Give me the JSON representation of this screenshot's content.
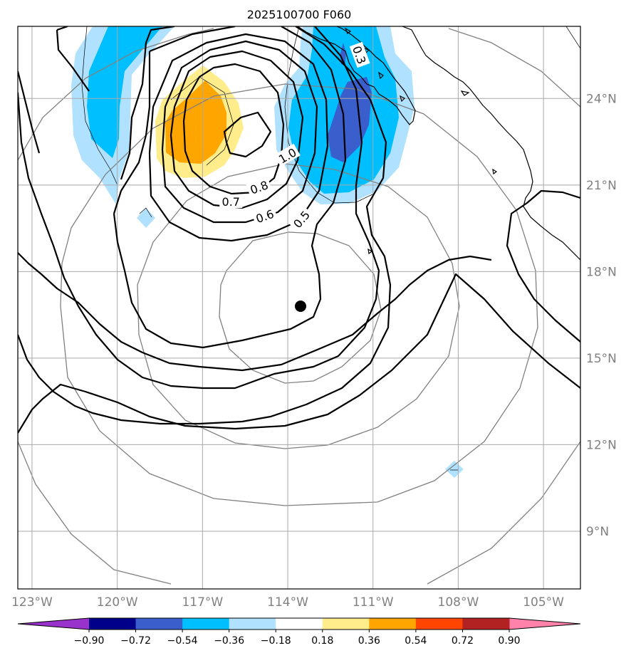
{
  "chart_data": {
    "type": "contour",
    "title": "2025100700 F060",
    "xlabel": "",
    "ylabel": "",
    "lon_range": [
      -123.5,
      -103.7
    ],
    "lat_range": [
      7.0,
      26.5
    ],
    "lon_ticks": [
      {
        "value": -123,
        "label": "123°W"
      },
      {
        "value": -120,
        "label": "120°W"
      },
      {
        "value": -117,
        "label": "117°W"
      },
      {
        "value": -114,
        "label": "114°W"
      },
      {
        "value": -111,
        "label": "111°W"
      },
      {
        "value": -108,
        "label": "108°W"
      },
      {
        "value": -105,
        "label": "105°W"
      }
    ],
    "lat_ticks": [
      {
        "value": 24,
        "label": "24°N"
      },
      {
        "value": 21,
        "label": "21°N"
      },
      {
        "value": 18,
        "label": "18°N"
      },
      {
        "value": 15,
        "label": "15°N"
      },
      {
        "value": 12,
        "label": "12°N"
      },
      {
        "value": 9,
        "label": "9°N"
      }
    ],
    "grid": true,
    "center_marker": {
      "lon": -113.55,
      "lat": 16.8
    },
    "contour_labels": [
      {
        "text": "1.0",
        "lon": -114.0,
        "lat": 22.0,
        "angle": -30
      },
      {
        "text": "0.8",
        "lon": -115.0,
        "lat": 20.9,
        "angle": -20
      },
      {
        "text": "0.7",
        "lon": -116.0,
        "lat": 20.4,
        "angle": 0
      },
      {
        "text": "0.6",
        "lon": -114.8,
        "lat": 19.9,
        "angle": -20
      },
      {
        "text": "0.5",
        "lon": -113.5,
        "lat": 19.8,
        "angle": -50
      },
      {
        "text": "0.3",
        "lon": -111.5,
        "lat": 25.5,
        "angle": 70
      }
    ],
    "colorbar": {
      "levels": [
        -0.9,
        -0.72,
        -0.54,
        -0.36,
        -0.18,
        0.18,
        0.36,
        0.54,
        0.72,
        0.9
      ],
      "tick_labels": [
        "−0.90",
        "−0.72",
        "−0.54",
        "−0.36",
        "−0.18",
        "0.18",
        "0.36",
        "0.54",
        "0.72",
        "0.90"
      ],
      "colors": [
        "#9932cc",
        "#00008b",
        "#3a5fcd",
        "#00bfff",
        "#b0e2ff",
        "#ffffff",
        "#ffec8b",
        "#ffa500",
        "#ff4500",
        "#b22222",
        "#ff82ab"
      ],
      "extend": "both"
    }
  }
}
